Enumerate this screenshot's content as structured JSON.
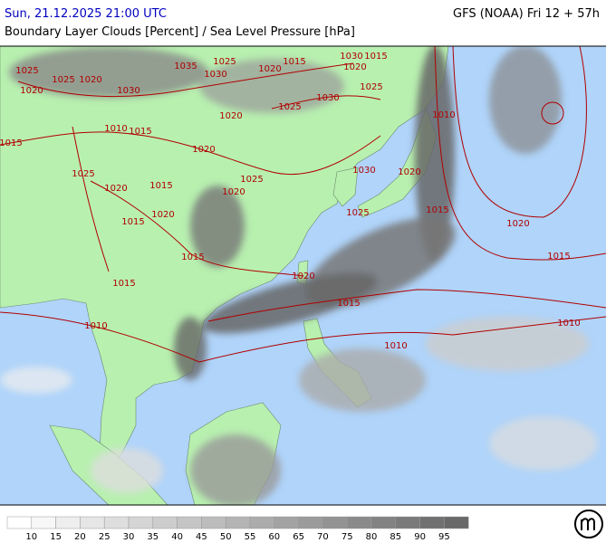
{
  "header": {
    "timestamp": "Sun, 21.12.2025 21:00 UTC",
    "model": "GFS (NOAA) Fri 12 + 57h",
    "title": "Boundary Layer Clouds [Percent] / Sea Level Pressure [hPa]"
  },
  "isobar_labels": [
    "1025",
    "1020",
    "1015",
    "1025",
    "1020",
    "1030",
    "1035",
    "1030",
    "1025",
    "1020",
    "1015",
    "1030",
    "1015",
    "1020",
    "1025",
    "1030",
    "1025",
    "1020",
    "1010",
    "1015",
    "1020",
    "1025",
    "1020",
    "1015",
    "1020",
    "1025",
    "1030",
    "1020",
    "1025",
    "1015",
    "1010",
    "1020",
    "1015",
    "1020",
    "1015",
    "1015",
    "1015",
    "1020",
    "1015",
    "1010",
    "1010",
    "1010"
  ],
  "legend": {
    "labels": [
      10,
      15,
      20,
      25,
      30,
      35,
      40,
      45,
      50,
      55,
      60,
      65,
      70,
      75,
      80,
      85,
      90,
      95
    ]
  }
}
